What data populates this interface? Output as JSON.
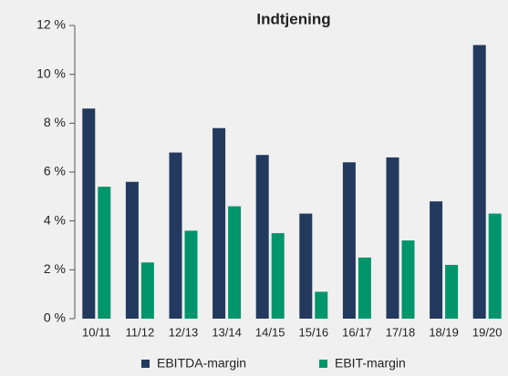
{
  "chart_data": {
    "type": "bar",
    "title": "Indtjening",
    "categories": [
      "10/11",
      "11/12",
      "12/13",
      "13/14",
      "14/15",
      "15/16",
      "16/17",
      "17/18",
      "18/19",
      "19/20"
    ],
    "series": [
      {
        "name": "EBITDA-margin",
        "color": "#233a5e",
        "values": [
          8.6,
          5.6,
          6.8,
          7.8,
          6.7,
          4.3,
          6.4,
          6.6,
          4.8,
          11.2
        ]
      },
      {
        "name": "EBIT-margin",
        "color": "#00956a",
        "values": [
          5.4,
          2.3,
          3.6,
          4.6,
          3.5,
          1.1,
          2.5,
          3.2,
          2.2,
          4.3
        ]
      }
    ],
    "ylim": [
      0,
      12
    ],
    "yticks": [
      {
        "value": 0,
        "label": "0 %"
      },
      {
        "value": 2,
        "label": "2 %"
      },
      {
        "value": 4,
        "label": "4 %"
      },
      {
        "value": 6,
        "label": "6 %"
      },
      {
        "value": 8,
        "label": "8 %"
      },
      {
        "value": 10,
        "label": "10 %"
      },
      {
        "value": 12,
        "label": "12 %"
      }
    ]
  }
}
